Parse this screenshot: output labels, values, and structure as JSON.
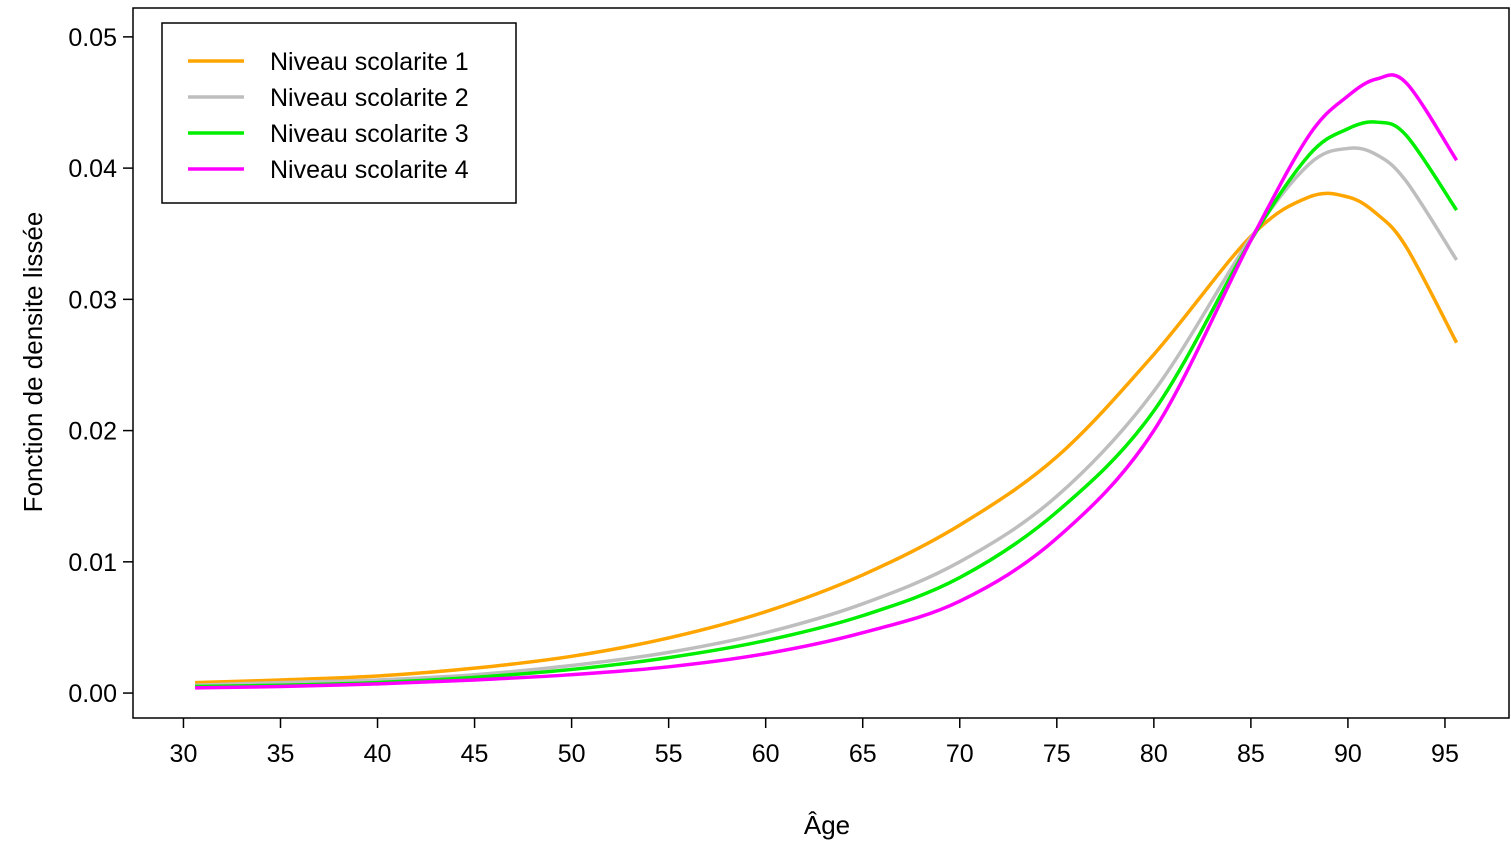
{
  "chart_data": {
    "type": "line",
    "title": "",
    "xlabel": "Âge",
    "ylabel": "Fonction de densite lissée",
    "xlim": [
      27.4,
      98.3
    ],
    "ylim": [
      -0.0019,
      0.0522
    ],
    "x_ticks": [
      30,
      35,
      40,
      45,
      50,
      55,
      60,
      65,
      70,
      75,
      80,
      85,
      90,
      95
    ],
    "y_ticks": [
      0.0,
      0.01,
      0.02,
      0.03,
      0.04,
      0.05
    ],
    "y_tick_labels": [
      "0.00",
      "0.01",
      "0.02",
      "0.03",
      "0.04",
      "0.05"
    ],
    "grid": false,
    "legend_position": "top-left",
    "x": [
      30.6,
      35,
      40,
      45,
      50,
      55,
      60,
      65,
      70,
      75,
      80,
      85,
      88,
      90,
      91.5,
      93,
      95.6
    ],
    "series": [
      {
        "name": "Niveau scolarite 1",
        "color": "#FFA500",
        "values": [
          0.0008,
          0.001,
          0.0013,
          0.0019,
          0.0028,
          0.0042,
          0.0062,
          0.009,
          0.0128,
          0.018,
          0.0258,
          0.0348,
          0.0378,
          0.0378,
          0.0365,
          0.034,
          0.0267
        ]
      },
      {
        "name": "Niveau scolarite 2",
        "color": "#BEBEBE",
        "values": [
          0.0006,
          0.0008,
          0.001,
          0.0014,
          0.0021,
          0.0031,
          0.0046,
          0.0068,
          0.01,
          0.015,
          0.023,
          0.0347,
          0.0403,
          0.0415,
          0.041,
          0.039,
          0.033
        ]
      },
      {
        "name": "Niveau scolarite 3",
        "color": "#00EE00",
        "values": [
          0.0005,
          0.0006,
          0.0008,
          0.0012,
          0.0018,
          0.0027,
          0.004,
          0.0059,
          0.0088,
          0.0138,
          0.0215,
          0.0345,
          0.041,
          0.043,
          0.0435,
          0.0425,
          0.0368
        ]
      },
      {
        "name": "Niveau scolarite 4",
        "color": "#FF00FF",
        "values": [
          0.0004,
          0.0005,
          0.0007,
          0.001,
          0.0014,
          0.002,
          0.003,
          0.0046,
          0.007,
          0.0118,
          0.02,
          0.0345,
          0.0425,
          0.0455,
          0.0468,
          0.0465,
          0.0406
        ]
      }
    ]
  }
}
